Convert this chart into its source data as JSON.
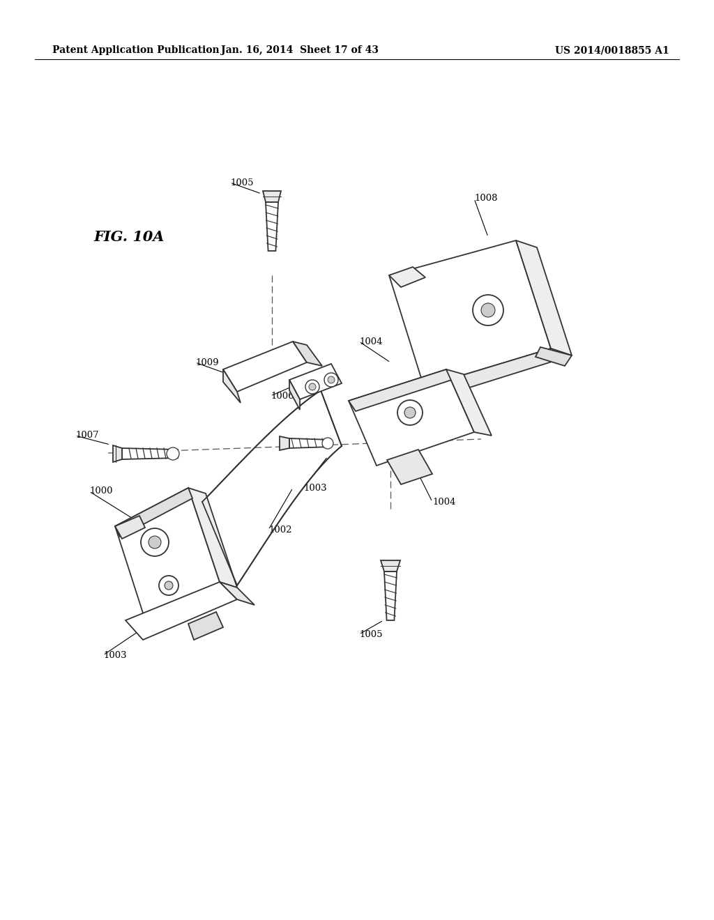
{
  "background_color": "#ffffff",
  "header_left": "Patent Application Publication",
  "header_middle": "Jan. 16, 2014  Sheet 17 of 43",
  "header_right": "US 2014/0018855 A1",
  "figure_label": "FIG. 10A",
  "line_color": "#333333",
  "line_width": 1.3,
  "label_fontsize": 9.5,
  "fig_width": 10.24,
  "fig_height": 13.2,
  "dpi": 100
}
